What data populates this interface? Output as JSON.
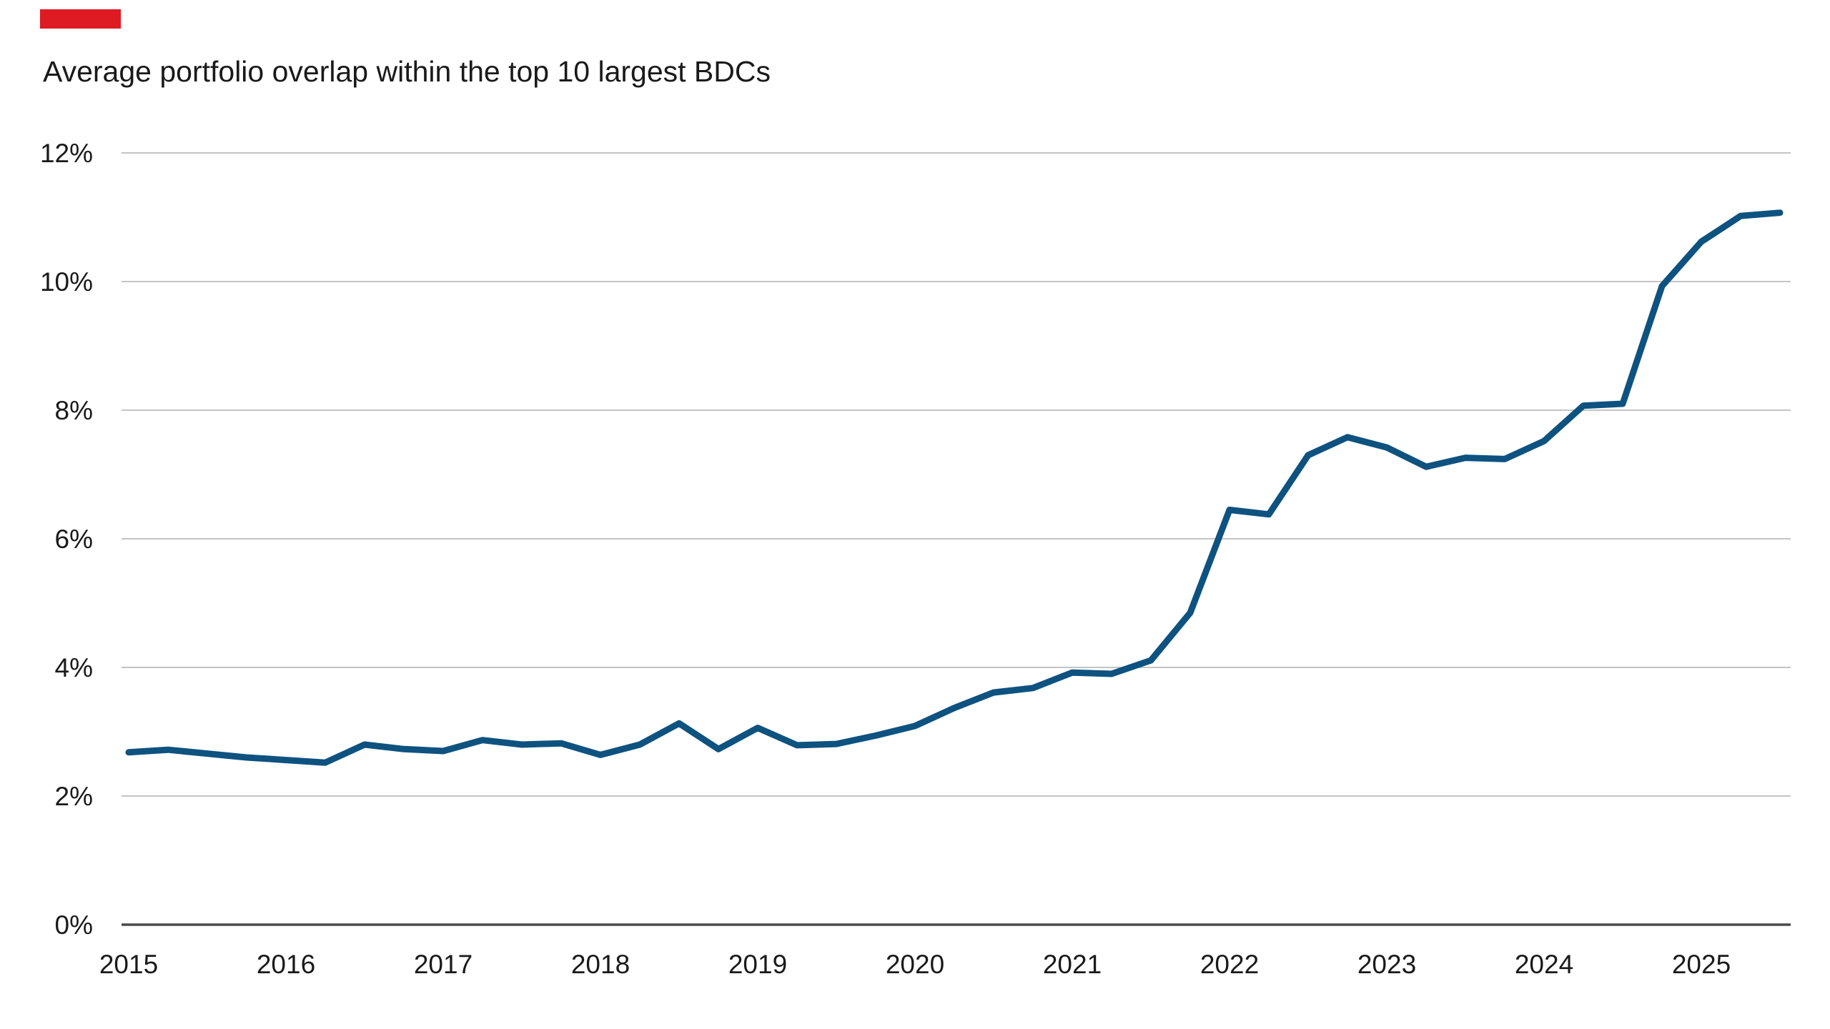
{
  "brand": {
    "accent_bar_color": "#de1b22"
  },
  "chart": {
    "title": "Average portfolio overlap within the top 10 largest BDCs",
    "title_color": "#1a1a1a",
    "background_color": "#ffffff"
  },
  "chart_data": {
    "type": "line",
    "title": "Average portfolio overlap within the top 10 largest BDCs",
    "series_name": "Average portfolio overlap within the top 10 largest BDCs",
    "x_unit": "quarter",
    "quarters": [
      "2015 Q1",
      "2015 Q2",
      "2015 Q3",
      "2015 Q4",
      "2016 Q1",
      "2016 Q2",
      "2016 Q3",
      "2016 Q4",
      "2017 Q1",
      "2017 Q2",
      "2017 Q3",
      "2017 Q4",
      "2018 Q1",
      "2018 Q2",
      "2018 Q3",
      "2018 Q4",
      "2019 Q1",
      "2019 Q2",
      "2019 Q3",
      "2019 Q4",
      "2020 Q1",
      "2020 Q2",
      "2020 Q3",
      "2020 Q4",
      "2021 Q1",
      "2021 Q2",
      "2021 Q3",
      "2021 Q4",
      "2022 Q1",
      "2022 Q2",
      "2022 Q3",
      "2022 Q4",
      "2023 Q1",
      "2023 Q2",
      "2023 Q3",
      "2023 Q4",
      "2024 Q1",
      "2024 Q2",
      "2024 Q3",
      "2024 Q4",
      "2025 Q1",
      "2025 Q2",
      "2025 Q3"
    ],
    "values": [
      2.68,
      2.72,
      2.66,
      2.6,
      2.56,
      2.52,
      2.8,
      2.73,
      2.7,
      2.87,
      2.8,
      2.82,
      2.64,
      2.8,
      3.13,
      2.73,
      3.06,
      2.79,
      2.81,
      2.94,
      3.09,
      3.37,
      3.61,
      3.68,
      3.92,
      3.9,
      4.11,
      4.85,
      6.45,
      6.38,
      7.3,
      7.58,
      7.42,
      7.12,
      7.26,
      7.24,
      7.52,
      8.07,
      8.1,
      9.93,
      10.62,
      11.02,
      11.07
    ],
    "xlabel": "",
    "ylabel": "",
    "x_tick_labels": [
      "2015",
      "2016",
      "2017",
      "2018",
      "2019",
      "2020",
      "2021",
      "2022",
      "2023",
      "2024",
      "2025"
    ],
    "x_tick_years": [
      2015,
      2016,
      2017,
      2018,
      2019,
      2020,
      2021,
      2022,
      2023,
      2024,
      2025
    ],
    "y_tick_labels": [
      "0%",
      "2%",
      "4%",
      "6%",
      "8%",
      "10%",
      "12%"
    ],
    "y_tick_values": [
      0,
      2,
      4,
      6,
      8,
      10,
      12
    ],
    "ylim": [
      0,
      12
    ],
    "xlim": [
      2015.0,
      2025.6
    ],
    "grid": "horizontal",
    "legend": "none",
    "line_color": "#0e5280",
    "grid_color": "#c4c4c4",
    "axis_color": "#4a4a4a"
  }
}
